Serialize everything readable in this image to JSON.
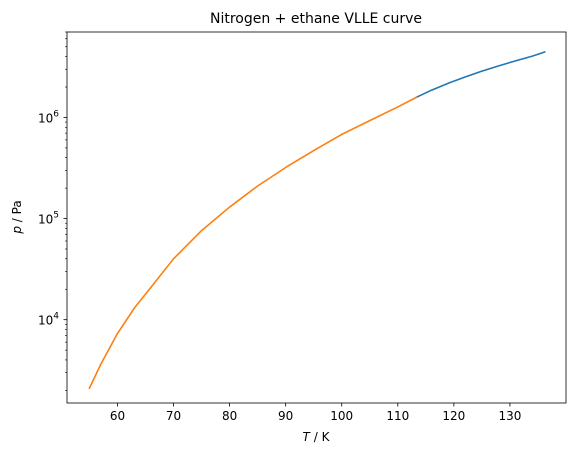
{
  "chart_data": {
    "type": "line",
    "title": "Nitrogen + ethane VLLE curve",
    "xlabel": {
      "symbol": "T",
      "unit": " / K"
    },
    "ylabel": {
      "symbol": "p",
      "unit": " / Pa"
    },
    "xlim": [
      51,
      140
    ],
    "ylim": [
      1500,
      7000000
    ],
    "yscale": "log",
    "grid": false,
    "x_ticks": [
      60,
      70,
      80,
      90,
      100,
      110,
      120,
      130
    ],
    "y_major_ticks": [
      {
        "value": 10000,
        "base": "10",
        "exp": "4"
      },
      {
        "value": 100000,
        "base": "10",
        "exp": "5"
      },
      {
        "value": 1000000,
        "base": "10",
        "exp": "6"
      }
    ],
    "series": [
      {
        "color": "#1f77b4",
        "x": [
          113.3,
          116,
          119,
          122,
          125,
          128,
          131,
          134,
          136.2
        ],
        "y": [
          1580000,
          1860000,
          2180000,
          2510000,
          2870000,
          3240000,
          3630000,
          4040000,
          4440000
        ]
      },
      {
        "color": "#ff7f0e",
        "x": [
          55,
          57,
          60,
          63,
          66,
          70,
          75,
          80,
          85,
          90,
          95,
          100,
          105,
          110,
          113.3
        ],
        "y": [
          2100,
          3600,
          7300,
          13000,
          21000,
          40000,
          76000,
          130000,
          210000,
          320000,
          470000,
          680000,
          930000,
          1270000,
          1580000
        ]
      }
    ]
  }
}
